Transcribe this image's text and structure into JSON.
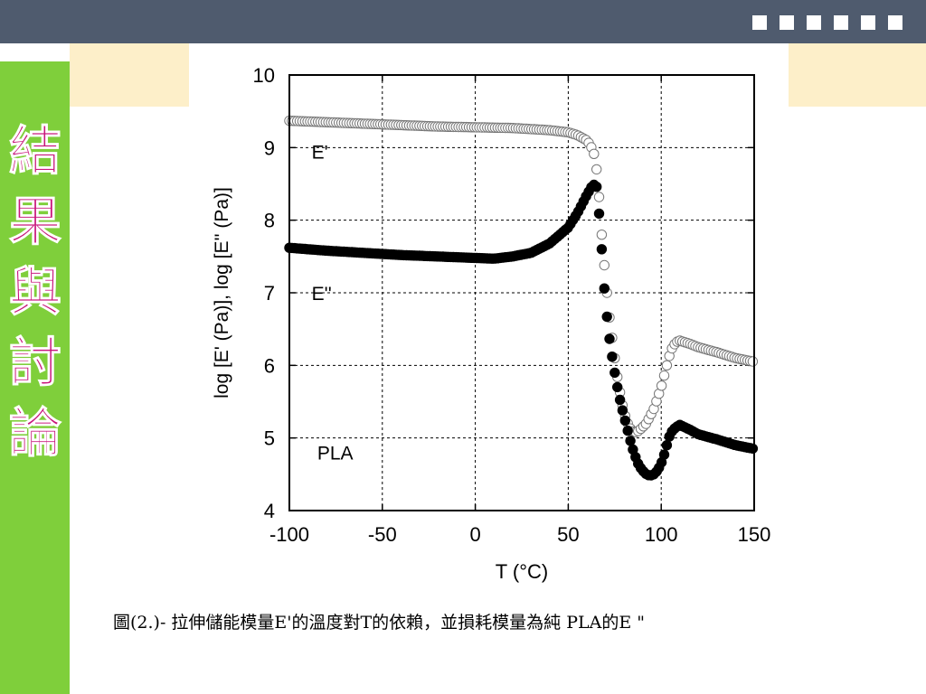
{
  "slide": {
    "side_title": "結果與討論",
    "caption": "圖(2.)- 拉伸儲能模量E'的溫度對T的依賴，並損耗模量為純 PLA的E \""
  },
  "colors": {
    "topbar": "#4f5b6e",
    "sidebar": "#7fcf3b",
    "title_text": "#c8157a",
    "cream": "#fdefc9"
  },
  "chart_data": {
    "type": "scatter",
    "xlabel": "T (°C)",
    "ylabel": "log [E' (Pa)], log [E'' (Pa)]",
    "xlim": [
      -100,
      150
    ],
    "ylim": [
      4,
      10
    ],
    "xticks": [
      -100,
      -50,
      0,
      50,
      100,
      150
    ],
    "yticks": [
      4,
      5,
      6,
      7,
      8,
      9,
      10
    ],
    "grid": true,
    "annotations": [
      {
        "text": "E'",
        "x": -88,
        "y": 8.95
      },
      {
        "text": "E''",
        "x": -88,
        "y": 7.0
      },
      {
        "text": "PLA",
        "x": -85,
        "y": 4.8
      }
    ],
    "series": [
      {
        "marker": "open-circle",
        "x": [
          -100,
          -80,
          -60,
          -40,
          -20,
          0,
          20,
          40,
          50,
          55,
          60,
          62,
          64,
          65,
          66,
          67,
          68,
          70,
          72,
          74,
          76,
          78,
          80,
          82,
          84,
          86,
          88,
          90,
          92,
          94,
          96,
          98,
          100,
          102,
          104,
          106,
          108,
          110,
          115,
          120,
          130,
          140,
          150
        ],
        "y": [
          9.37,
          9.35,
          9.33,
          9.31,
          9.29,
          9.28,
          9.27,
          9.24,
          9.21,
          9.17,
          9.1,
          9.03,
          8.9,
          8.75,
          8.5,
          8.2,
          7.8,
          7.2,
          6.7,
          6.3,
          5.9,
          5.6,
          5.35,
          5.2,
          5.1,
          5.08,
          5.1,
          5.15,
          5.2,
          5.3,
          5.4,
          5.55,
          5.7,
          5.9,
          6.1,
          6.25,
          6.32,
          6.34,
          6.3,
          6.25,
          6.18,
          6.1,
          6.05
        ]
      },
      {
        "marker": "filled-circle",
        "x": [
          -100,
          -80,
          -60,
          -40,
          -20,
          0,
          10,
          20,
          30,
          40,
          50,
          55,
          60,
          63,
          65,
          66,
          67,
          68,
          69,
          70,
          72,
          74,
          76,
          78,
          80,
          82,
          84,
          86,
          88,
          90,
          92,
          94,
          96,
          98,
          100,
          102,
          104,
          106,
          108,
          110,
          115,
          120,
          130,
          140,
          150
        ],
        "y": [
          7.62,
          7.58,
          7.55,
          7.52,
          7.5,
          7.48,
          7.47,
          7.5,
          7.55,
          7.68,
          7.9,
          8.1,
          8.35,
          8.48,
          8.5,
          8.3,
          7.95,
          7.6,
          7.2,
          6.85,
          6.4,
          6.05,
          5.75,
          5.5,
          5.3,
          5.1,
          4.9,
          4.75,
          4.62,
          4.55,
          4.5,
          4.48,
          4.5,
          4.55,
          4.65,
          4.8,
          5.0,
          5.1,
          5.15,
          5.18,
          5.12,
          5.05,
          4.98,
          4.9,
          4.85
        ]
      }
    ]
  }
}
